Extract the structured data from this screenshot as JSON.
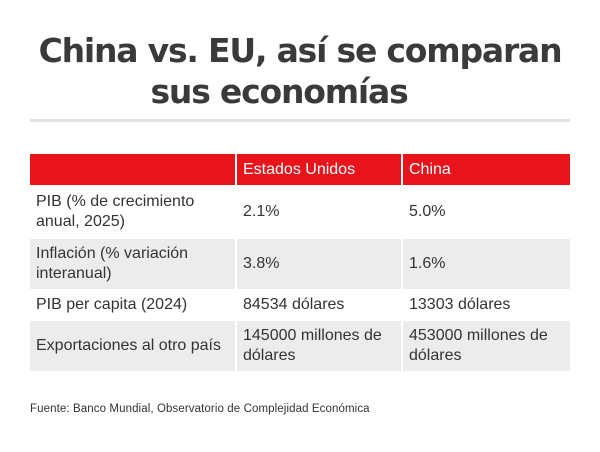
{
  "title": {
    "line1": "China vs. EU, así se comparan",
    "line2": "sus economías"
  },
  "table": {
    "headers": [
      "",
      "Estados Unidos",
      "China"
    ],
    "rows": [
      {
        "label": "PIB (% de crecimiento anual, 2025)",
        "us": "2.1%",
        "china": "5.0%"
      },
      {
        "label": "Inflación (% variación interanual)",
        "us": "3.8%",
        "china": "1.6%"
      },
      {
        "label": "PIB per capita (2024)",
        "us": "84534 dólares",
        "china": "13303 dólares"
      },
      {
        "label": "Exportaciones al otro país",
        "us": "145000 millones de dólares",
        "china": "453000 millones de dólares"
      }
    ]
  },
  "source": "Fuente: Banco Mundial, Observatorio de Complejidad Económica",
  "colors": {
    "header_red": "#e8141c",
    "stripe_gray": "#ececec",
    "text": "#333333"
  }
}
